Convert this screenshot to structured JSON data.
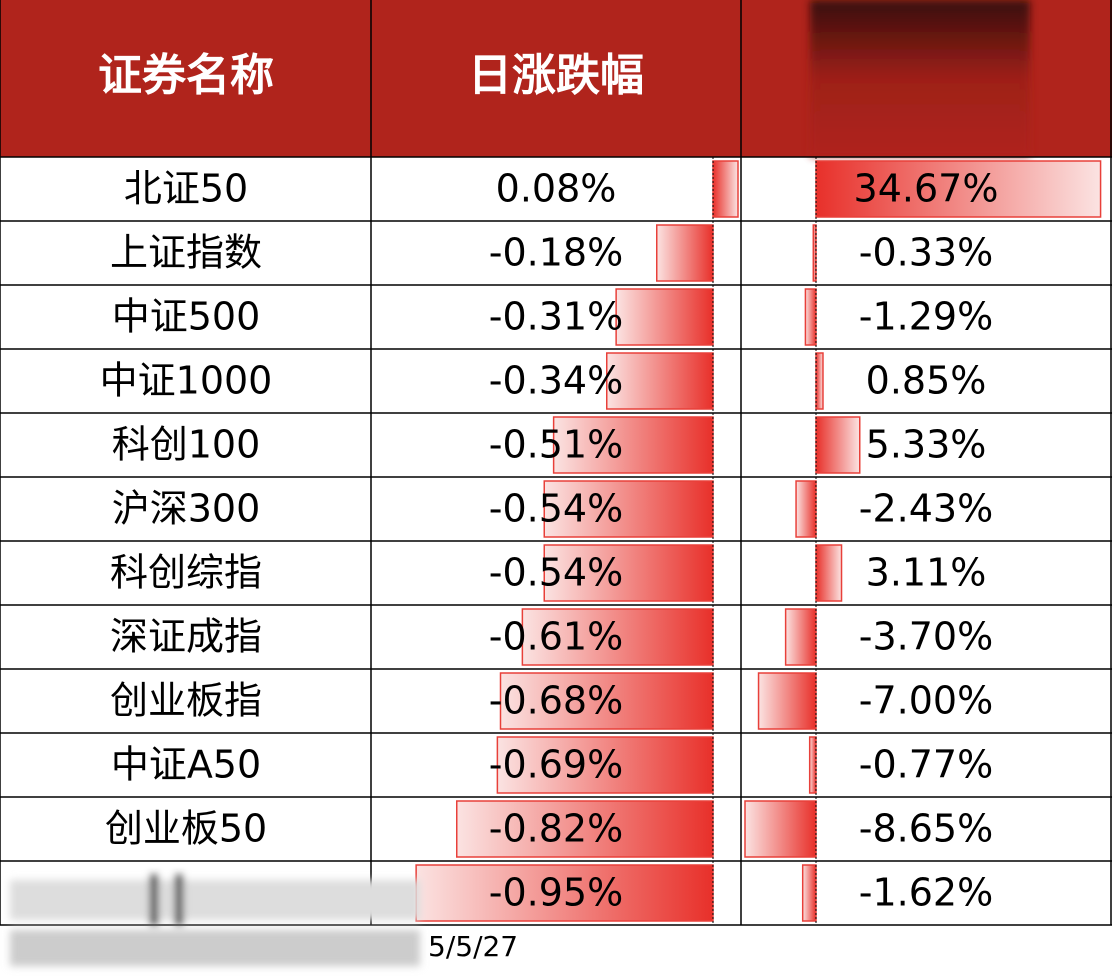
{
  "header": {
    "columns": [
      "证券名称",
      "日涨跌幅"
    ]
  },
  "table": {
    "rows": [
      {
        "name": "北证50",
        "day": {
          "value": 0.08,
          "label": "0.08%"
        },
        "other": {
          "value": 34.67,
          "label": "34.67%"
        }
      },
      {
        "name": "上证指数",
        "day": {
          "value": -0.18,
          "label": "-0.18%"
        },
        "other": {
          "value": -0.33,
          "label": "-0.33%"
        }
      },
      {
        "name": "中证500",
        "day": {
          "value": -0.31,
          "label": "-0.31%"
        },
        "other": {
          "value": -1.29,
          "label": "-1.29%"
        }
      },
      {
        "name": "中证1000",
        "day": {
          "value": -0.34,
          "label": "-0.34%"
        },
        "other": {
          "value": 0.85,
          "label": "0.85%"
        }
      },
      {
        "name": "科创100",
        "day": {
          "value": -0.51,
          "label": "-0.51%"
        },
        "other": {
          "value": 5.33,
          "label": "5.33%"
        }
      },
      {
        "name": "沪深300",
        "day": {
          "value": -0.54,
          "label": "-0.54%"
        },
        "other": {
          "value": -2.43,
          "label": "-2.43%"
        }
      },
      {
        "name": "科创综指",
        "day": {
          "value": -0.54,
          "label": "-0.54%"
        },
        "other": {
          "value": 3.11,
          "label": "3.11%"
        }
      },
      {
        "name": "深证成指",
        "day": {
          "value": -0.61,
          "label": "-0.61%"
        },
        "other": {
          "value": -3.7,
          "label": "-3.70%"
        }
      },
      {
        "name": "创业板指",
        "day": {
          "value": -0.68,
          "label": "-0.68%"
        },
        "other": {
          "value": -7,
          "label": "-7.00%"
        }
      },
      {
        "name": "中证A50",
        "day": {
          "value": -0.69,
          "label": "-0.69%"
        },
        "other": {
          "value": -0.77,
          "label": "-0.77%"
        }
      },
      {
        "name": "创业板50",
        "day": {
          "value": -0.82,
          "label": "-0.82%"
        },
        "other": {
          "value": -8.65,
          "label": "-8.65%"
        }
      },
      {
        "name": null,
        "day": {
          "value": -0.95,
          "label": "-0.95%"
        },
        "other": {
          "value": -1.62,
          "label": "-1.62%"
        }
      }
    ]
  },
  "footer": {
    "date": "5/5/27"
  }
}
